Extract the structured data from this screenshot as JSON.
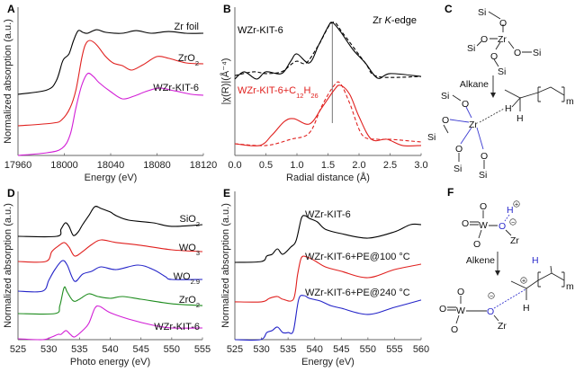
{
  "chart_data": [
    {
      "id": "A",
      "panel_label": "A",
      "type": "line",
      "xlabel": "Energy (eV)",
      "ylabel": "Normalized absorption (a.u.)",
      "xlim": [
        17960,
        18120
      ],
      "ylim": [
        0,
        10
      ],
      "xticks": [
        17960,
        18000,
        18040,
        18080,
        18120
      ],
      "annotations": [],
      "series": [
        {
          "name": "Zr foil",
          "color": "#000000",
          "dash": false,
          "x": [
            17960,
            17985,
            17993,
            17998,
            18000,
            18004,
            18008,
            18012,
            18016,
            18020,
            18028,
            18036,
            18050,
            18062,
            18075,
            18090,
            18105,
            18120
          ],
          "y": [
            4.12,
            4.42,
            5.03,
            6.24,
            6.55,
            6.85,
            7.76,
            8.42,
            8.3,
            8.24,
            8.48,
            8.3,
            8.24,
            8.42,
            8.24,
            8.36,
            8.24,
            8.24
          ]
        },
        {
          "name": "ZrO2",
          "color": "#e0201e",
          "dash": false,
          "x": [
            17960,
            17990,
            17998,
            18005,
            18010,
            18015,
            18018,
            18022,
            18028,
            18035,
            18042,
            18050,
            18058,
            18068,
            18080,
            18090,
            18105,
            18120
          ],
          "y": [
            2.0,
            2.18,
            2.42,
            3.21,
            4.42,
            6.55,
            7.45,
            7.76,
            7.45,
            6.73,
            6.24,
            6.06,
            5.76,
            6.12,
            6.67,
            6.55,
            6.24,
            6.18
          ]
        },
        {
          "name": "WZr-KIT-6",
          "color": "#d21ed6",
          "dash": false,
          "x": [
            17960,
            17985,
            17998,
            18005,
            18010,
            18015,
            18020,
            18025,
            18030,
            18040,
            18050,
            18060,
            18070,
            18082,
            18095,
            18110,
            18120
          ],
          "y": [
            0,
            0.18,
            0.48,
            1.39,
            3.21,
            4.73,
            5.52,
            5.33,
            4.91,
            4.3,
            3.82,
            4.0,
            4.3,
            4.55,
            4.36,
            4.12,
            4.06
          ]
        }
      ]
    },
    {
      "id": "B",
      "panel_label": "B",
      "type": "line",
      "xlabel": "Radial distance (Å)",
      "ylabel": "|χ(R)|(Å⁻⁴)",
      "xlim": [
        0,
        3.0
      ],
      "ylim": [
        0,
        10
      ],
      "xticks": [
        0.0,
        0.5,
        1.0,
        1.5,
        2.0,
        2.5,
        3.0
      ],
      "annotations": [
        "Zr K-edge"
      ],
      "reference_line_x": 1.57,
      "series": [
        {
          "name": "WZr-KIT-6",
          "color": "#000000",
          "dash": false,
          "x": [
            0,
            0.15,
            0.35,
            0.5,
            0.75,
            0.9,
            1.0,
            1.2,
            1.35,
            1.5,
            1.57,
            1.7,
            1.9,
            2.1,
            2.3,
            2.5,
            3.0
          ],
          "y": [
            5.15,
            5.64,
            5.15,
            5.64,
            5.52,
            6.36,
            6.85,
            6.24,
            7.45,
            8.67,
            8.97,
            8.36,
            7.15,
            6.24,
            5.21,
            5.52,
            5.33
          ]
        },
        {
          "name": "WZr-KIT-6 fit",
          "color": "#000000",
          "dash": true,
          "x": [
            0,
            0.3,
            0.5,
            0.75,
            0.9,
            1.0,
            1.15,
            1.35,
            1.57,
            1.75,
            2.1,
            2.3,
            3.0
          ],
          "y": [
            5.39,
            5.64,
            5.52,
            5.64,
            6.12,
            6.36,
            6.24,
            7.45,
            8.97,
            8.18,
            6.24,
            5.33,
            5.33
          ]
        },
        {
          "name": "WZr-KIT-6+C12H26",
          "color": "#e0201e",
          "dash": false,
          "x": [
            0,
            0.4,
            0.6,
            0.8,
            0.95,
            1.2,
            1.4,
            1.6,
            1.7,
            1.85,
            2.0,
            2.2,
            2.45,
            2.7,
            3.0
          ],
          "y": [
            0.79,
            0.67,
            1.39,
            2.3,
            2.48,
            2.12,
            3.21,
            4.42,
            4.73,
            4.12,
            2.61,
            1.09,
            1.09,
            0.67,
            0.67
          ]
        },
        {
          "name": "WZr-KIT-6+C12H26 fit",
          "color": "#e0201e",
          "dash": true,
          "x": [
            0,
            0.5,
            0.9,
            1.2,
            1.4,
            1.6,
            1.7,
            1.85,
            2.05,
            2.3,
            2.5,
            3.0
          ],
          "y": [
            0.79,
            0.67,
            1.09,
            1.52,
            3.33,
            4.73,
            4.85,
            3.52,
            1.39,
            1.09,
            1.09,
            0.91
          ]
        }
      ]
    },
    {
      "id": "D",
      "panel_label": "D",
      "type": "line",
      "xlabel": "Photo energy (eV)",
      "ylabel": "Normalized absorption (a.u.)",
      "xlim": [
        525,
        555
      ],
      "ylim": [
        0,
        10
      ],
      "xticks": [
        525,
        530,
        535,
        540,
        545,
        550,
        555
      ],
      "annotations": [],
      "series": [
        {
          "name": "SiO2",
          "color": "#000000",
          "dash": false,
          "x": [
            525,
            531.3,
            532,
            532.7,
            533.3,
            534,
            534.8,
            535.5,
            536.5,
            537.5,
            538.5,
            540,
            541,
            543,
            547,
            550,
            555
          ],
          "y": [
            6.97,
            6.97,
            7.45,
            7.88,
            7.64,
            7.03,
            7.27,
            7.76,
            8.36,
            8.97,
            8.85,
            8.61,
            8.36,
            8.06,
            7.88,
            7.64,
            7.76
          ]
        },
        {
          "name": "WO3",
          "color": "#e0201e",
          "dash": false,
          "x": [
            525,
            529.5,
            530.5,
            531.5,
            532.5,
            533.3,
            534.2,
            535.5,
            537,
            538.5,
            541,
            545,
            550,
            555
          ],
          "y": [
            5.27,
            5.27,
            5.94,
            6.3,
            6.55,
            6.24,
            5.64,
            5.94,
            6.42,
            6.73,
            6.55,
            6.36,
            6.06,
            5.94
          ]
        },
        {
          "name": "WO2.9",
          "color": "#2323c8",
          "dash": false,
          "x": [
            525,
            529,
            530,
            531,
            532.2,
            533,
            534.2,
            535.5,
            537,
            538.5,
            541,
            544.5,
            547,
            549,
            550,
            555
          ],
          "y": [
            3.27,
            3.27,
            4.0,
            4.73,
            5.33,
            5.03,
            3.94,
            4.42,
            4.61,
            4.91,
            4.73,
            5.03,
            4.73,
            4.24,
            4.06,
            4.06
          ]
        },
        {
          "name": "ZrO2",
          "color": "#1e8c1e",
          "dash": false,
          "x": [
            525,
            531,
            531.8,
            532.5,
            533,
            534,
            535,
            536.5,
            538,
            540,
            542,
            545,
            550,
            555
          ],
          "y": [
            1.76,
            1.76,
            2.3,
            3.52,
            3.21,
            2.61,
            2.73,
            3.09,
            2.91,
            2.79,
            2.91,
            2.73,
            2.42,
            2.3
          ]
        },
        {
          "name": "WZr-KIT-6",
          "color": "#d21ed6",
          "dash": false,
          "x": [
            525,
            529,
            530.5,
            531.5,
            532,
            532.8,
            533.5,
            534.2,
            535.5,
            536.5,
            537.5,
            538.3,
            540,
            543,
            547,
            550,
            555
          ],
          "y": [
            0.06,
            0,
            0.18,
            0.36,
            0.36,
            0.61,
            0.36,
            0.18,
            0.61,
            1.09,
            2.12,
            2.24,
            1.82,
            1.39,
            0.97,
            0.79,
            0.79
          ]
        }
      ]
    },
    {
      "id": "E",
      "panel_label": "E",
      "type": "line",
      "xlabel": "Energy (eV)",
      "ylabel": "Normalized absorption (a.u.)",
      "xlim": [
        525,
        560
      ],
      "ylim": [
        0,
        10
      ],
      "xticks": [
        525,
        530,
        535,
        540,
        545,
        550,
        555,
        560
      ],
      "annotations": [],
      "series": [
        {
          "name": "WZr-KIT-6",
          "color": "#000000",
          "dash": false,
          "x": [
            525,
            530,
            531,
            532,
            533,
            534,
            535.5,
            536.5,
            537.5,
            538.2,
            539,
            540.5,
            542,
            545,
            550,
            555,
            558,
            560
          ],
          "y": [
            5.21,
            5.27,
            5.64,
            5.76,
            6.12,
            5.76,
            6.24,
            6.67,
            8.18,
            8.36,
            8.18,
            7.94,
            7.45,
            7.15,
            6.85,
            7.27,
            7.76,
            7.76
          ]
        },
        {
          "name": "WZr-KIT-6+PE@100 °C",
          "color": "#e0201e",
          "dash": false,
          "x": [
            525,
            530,
            531.5,
            533,
            534,
            536,
            536.8,
            537.5,
            538.5,
            540,
            542,
            545,
            550,
            555,
            560
          ],
          "y": [
            2.55,
            2.55,
            2.79,
            2.91,
            2.73,
            2.73,
            4.42,
            5.52,
            5.58,
            5.33,
            4.91,
            4.61,
            4.18,
            4.73,
            5.09
          ]
        },
        {
          "name": "WZr-KIT-6+PE@240 °C",
          "color": "#2323c8",
          "dash": false,
          "x": [
            525,
            529.8,
            531,
            532,
            533,
            534,
            535,
            536,
            537,
            538,
            539,
            541,
            543,
            545,
            550,
            555,
            560
          ],
          "y": [
            0,
            0,
            0.48,
            0.61,
            0.85,
            0.48,
            0.48,
            0.61,
            2.73,
            2.97,
            2.79,
            2.61,
            2.3,
            2.12,
            1.7,
            2.18,
            2.67
          ]
        }
      ]
    }
  ],
  "schemes": {
    "C": {
      "panel_label": "C",
      "reagent": "Alkane",
      "atoms": {
        "si": "Si",
        "o": "O",
        "zr": "Zr",
        "h": "H",
        "m": "m"
      }
    },
    "F": {
      "panel_label": "F",
      "reagent": "Alkene",
      "atoms": {
        "o": "O",
        "w": "W",
        "zr": "Zr",
        "h": "H",
        "m": "m",
        "plus": "+",
        "minus": "−"
      }
    }
  }
}
